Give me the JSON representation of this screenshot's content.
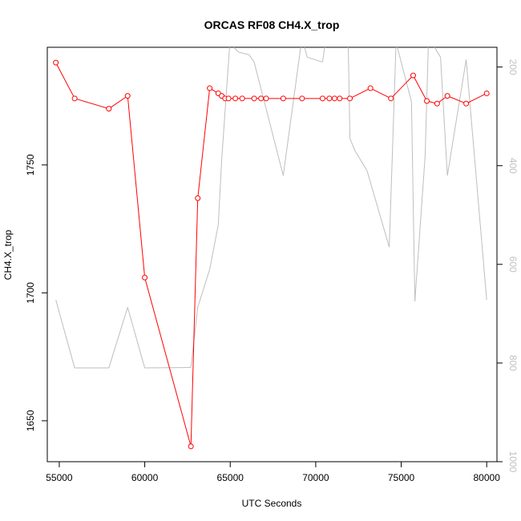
{
  "chart_data": {
    "type": "line",
    "title": "ORCAS RF08 CH4.X_trop",
    "xlabel": "UTC Seconds",
    "ylabel": "CH4.X_trop",
    "xlim": [
      54300,
      80600
    ],
    "ylim": [
      1634,
      1796
    ],
    "y2lim": [
      1000,
      160
    ],
    "y2_reversed": true,
    "x_ticks": [
      "55000",
      "60000",
      "65000",
      "70000",
      "75000",
      "80000"
    ],
    "y_ticks": [
      "1650",
      "1700",
      "1750"
    ],
    "y2_ticks": [
      "200",
      "400",
      "600",
      "800",
      "1000"
    ],
    "grid": false,
    "series": [
      {
        "axis": "left",
        "color": "#ff0000",
        "marker": "open-circle",
        "x": [
          54800,
          55900,
          57900,
          59000,
          60000,
          62700,
          63100,
          63800,
          64300,
          64500,
          64700,
          64900,
          65300,
          65700,
          66400,
          66800,
          67100,
          68100,
          69200,
          70400,
          70800,
          71100,
          71400,
          72000,
          73200,
          74400,
          75700,
          76500,
          77100,
          77700,
          78800,
          80000
        ],
        "y": [
          1790,
          1776,
          1772,
          1777,
          1706,
          1640,
          1737,
          1780,
          1778,
          1777,
          1776,
          1776,
          1776,
          1776,
          1776,
          1776,
          1776,
          1776,
          1776,
          1776,
          1776,
          1776,
          1776,
          1776,
          1780,
          1776,
          1785,
          1775,
          1774,
          1777,
          1774,
          1778
        ]
      },
      {
        "axis": "right",
        "color": "#bebebe",
        "marker": "none",
        "x": [
          54800,
          55900,
          57900,
          59000,
          60000,
          62700,
          63100,
          63800,
          64300,
          64500,
          65000,
          65200,
          65500,
          66100,
          66400,
          68100,
          69200,
          69500,
          70400,
          70600,
          71900,
          72000,
          72300,
          73000,
          74300,
          74700,
          75600,
          75800,
          76400,
          76600,
          77300,
          77700,
          78800,
          80000
        ],
        "y": [
          672,
          810,
          810,
          687,
          810,
          809,
          687,
          610,
          520,
          388,
          140,
          160,
          170,
          175,
          190,
          420,
          140,
          180,
          190,
          140,
          150,
          345,
          370,
          410,
          565,
          150,
          270,
          675,
          380,
          140,
          180,
          420,
          185,
          672
        ]
      }
    ]
  }
}
